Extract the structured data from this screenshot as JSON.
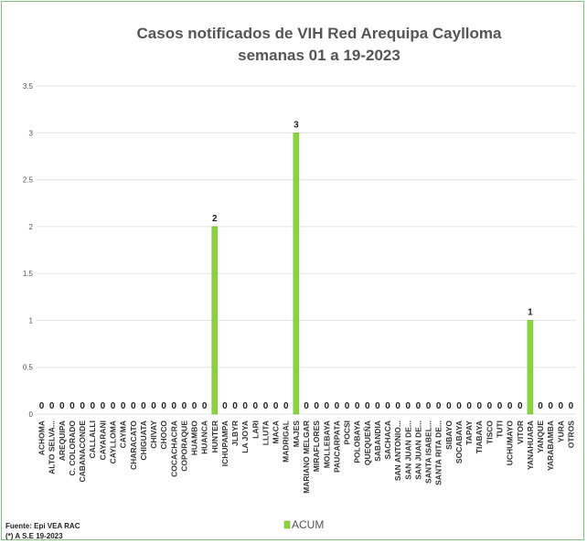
{
  "chart_data": {
    "type": "bar",
    "title_lines": [
      "Casos notificados de VIH Red Arequipa Caylloma",
      "semanas 01 a 19-2023"
    ],
    "categories": [
      "ACHOMA",
      "ALTO SELVA...",
      "AREQUIPA",
      "C. COLORADO",
      "CABANACONDE",
      "CALLALLI",
      "CAYARANI",
      "CAYLLOMA",
      "CAYMA",
      "CHARACATO",
      "CHIGUATA",
      "CHIVAY",
      "CHOCO",
      "COCACHACRA",
      "COPORAQUE",
      "HUAMBO",
      "HUANCA",
      "HUNTER",
      "ICHUPAMPA",
      "JLBYR",
      "LA JOYA",
      "LARI",
      "LLUTA",
      "MACA",
      "MADRIGAL",
      "MAJES",
      "MARIANO MELGAR",
      "MIRAFLORES",
      "MOLLEBAYA",
      "PAUCARPATA",
      "POCSI",
      "POLOBAYA",
      "QUEQUEÑA",
      "SABANDIA",
      "SACHACA",
      "SAN ANTONIO...",
      "SAN JUAN DE...",
      "SAN JUAN DE...",
      "SANTA ISABEL...",
      "SANTA RITA DE...",
      "SIBAYO",
      "SOCABAYA",
      "TAPAY",
      "TIABAYA",
      "TISCO",
      "TUTI",
      "UCHUMAYO",
      "VITOR",
      "YANAHUARA",
      "YANQUE",
      "YARABAMBA",
      "YURA",
      "OTROS"
    ],
    "series": [
      {
        "name": "ACUM",
        "values": [
          0,
          0,
          0,
          0,
          0,
          0,
          0,
          0,
          0,
          0,
          0,
          0,
          0,
          0,
          0,
          0,
          0,
          2,
          0,
          0,
          0,
          0,
          0,
          0,
          0,
          3,
          0,
          0,
          0,
          0,
          0,
          0,
          0,
          0,
          0,
          0,
          0,
          0,
          0,
          0,
          0,
          0,
          0,
          0,
          0,
          0,
          0,
          0,
          1,
          0,
          0,
          0,
          0
        ]
      }
    ],
    "yticks": [
      "0",
      "0.5",
      "1",
      "1.5",
      "2",
      "2.5",
      "3",
      "3.5"
    ],
    "ylim": [
      0,
      3.5
    ],
    "grid": true,
    "legend_position": "bottom",
    "colors": {
      "bar": "#8cd43c",
      "bar_edge": "#6fb52a",
      "grid": "#e4e4e4",
      "frame": "#7fbf7f"
    }
  },
  "footer": {
    "source": "Fuente: Epi VEA RAC",
    "note": "(*) A S.E 19-2023"
  }
}
